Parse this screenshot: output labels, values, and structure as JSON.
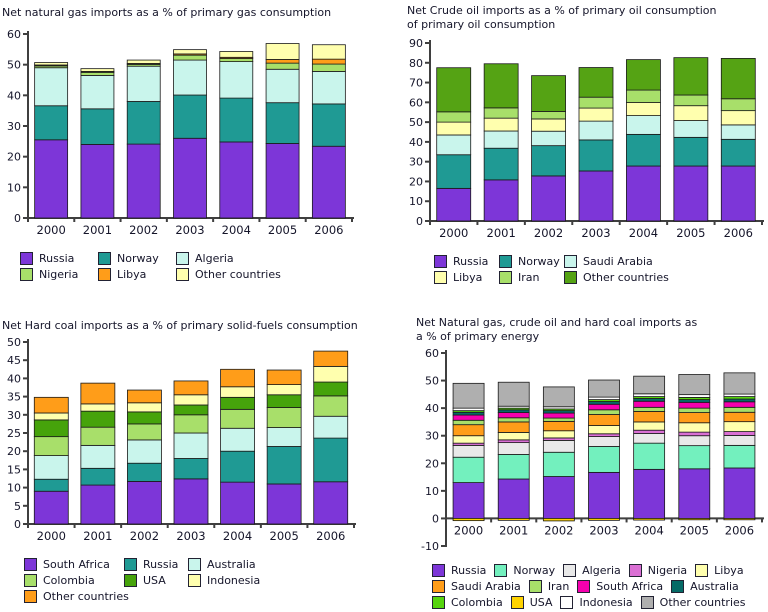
{
  "page": {
    "background": "#ffffff",
    "text_color": "#15152a",
    "axis_color": "#3f3f3f"
  },
  "chart_data": [
    {
      "id": "natural-gas",
      "type": "bar",
      "stacked": true,
      "title": "Net natural gas imports as a % of primary gas consumption",
      "categories": [
        "2000",
        "2001",
        "2002",
        "2003",
        "2004",
        "2005",
        "2006"
      ],
      "ylim": [
        0,
        60
      ],
      "ytick_step": 10,
      "grid": false,
      "legend_position": "bottom",
      "series": [
        {
          "name": "Russia",
          "color": "#7D36D8",
          "values": [
            25.5,
            24.0,
            24.1,
            26.0,
            24.8,
            24.3,
            23.4
          ]
        },
        {
          "name": "Norway",
          "color": "#1F9A94",
          "values": [
            11.1,
            11.6,
            13.9,
            14.1,
            14.3,
            13.3,
            13.8
          ]
        },
        {
          "name": "Algeria",
          "color": "#C9F5EC",
          "values": [
            12.4,
            10.9,
            11.5,
            11.4,
            11.9,
            10.9,
            10.6
          ]
        },
        {
          "name": "Nigeria",
          "color": "#A8DF6A",
          "values": [
            0.6,
            1.0,
            0.6,
            1.6,
            1.0,
            2.0,
            2.4
          ]
        },
        {
          "name": "Libya",
          "color": "#FF9D19",
          "values": [
            0.3,
            0.3,
            0.3,
            0.4,
            0.4,
            1.2,
            1.6
          ]
        },
        {
          "name": "Other countries",
          "color": "#FFFFAE",
          "values": [
            0.8,
            0.9,
            1.1,
            1.4,
            1.9,
            5.2,
            4.7
          ]
        }
      ],
      "legend_rows": [
        [
          0,
          1,
          2
        ],
        [
          3,
          4,
          5
        ]
      ]
    },
    {
      "id": "crude-oil",
      "type": "bar",
      "stacked": true,
      "title": "Net Crude oil imports as a % of primary oil consumption\nof primary oil consumption",
      "categories": [
        "2000",
        "2001",
        "2002",
        "2003",
        "2004",
        "2005",
        "2006"
      ],
      "ylim": [
        0,
        90
      ],
      "ytick_step": 10,
      "grid": false,
      "legend_position": "bottom",
      "series": [
        {
          "name": "Russia",
          "color": "#7D36D8",
          "values": [
            16.5,
            20.8,
            22.8,
            25.3,
            27.8,
            27.8,
            27.8
          ]
        },
        {
          "name": "Norway",
          "color": "#1F9A94",
          "values": [
            17.0,
            16.0,
            15.3,
            15.7,
            16.0,
            14.5,
            13.5
          ]
        },
        {
          "name": "Saudi Arabia",
          "color": "#C9F5EC",
          "values": [
            10.0,
            8.7,
            7.3,
            9.5,
            9.5,
            8.5,
            7.3
          ]
        },
        {
          "name": "Libya",
          "color": "#FFFFAE",
          "values": [
            6.5,
            6.5,
            6.2,
            6.6,
            6.6,
            7.5,
            7.2
          ]
        },
        {
          "name": "Iran",
          "color": "#A8DF6A",
          "values": [
            5.2,
            5.2,
            3.8,
            5.5,
            6.3,
            5.4,
            6.0
          ]
        },
        {
          "name": "Other countries",
          "color": "#55A314",
          "values": [
            22.3,
            22.3,
            18.1,
            15.0,
            15.4,
            18.9,
            20.4
          ]
        }
      ],
      "legend_rows": [
        [
          0,
          1,
          2
        ],
        [
          3,
          4,
          5
        ]
      ]
    },
    {
      "id": "hard-coal",
      "type": "bar",
      "stacked": true,
      "title": "Net Hard coal imports as a % of primary solid-fuels consumption",
      "categories": [
        "2000",
        "2001",
        "2002",
        "2003",
        "2004",
        "2005",
        "2006"
      ],
      "ylim": [
        0,
        50
      ],
      "ytick_step": 5,
      "grid": false,
      "legend_position": "bottom",
      "series": [
        {
          "name": "South Africa",
          "color": "#7D36D8",
          "values": [
            9.0,
            10.7,
            11.7,
            12.4,
            11.5,
            11.0,
            11.6
          ]
        },
        {
          "name": "Russia",
          "color": "#1F9A94",
          "values": [
            3.3,
            4.6,
            5.0,
            5.6,
            8.5,
            10.3,
            12.0
          ]
        },
        {
          "name": "Australia",
          "color": "#C9F5EC",
          "values": [
            6.5,
            6.3,
            6.4,
            7.0,
            6.3,
            5.2,
            6.0
          ]
        },
        {
          "name": "Colombia",
          "color": "#A8DF6A",
          "values": [
            5.2,
            5.0,
            4.4,
            5.0,
            5.2,
            5.5,
            5.6
          ]
        },
        {
          "name": "USA",
          "color": "#46A30B",
          "values": [
            4.6,
            4.4,
            3.3,
            2.7,
            3.3,
            3.5,
            3.8
          ]
        },
        {
          "name": "Indonesia",
          "color": "#FFFFAE",
          "values": [
            1.9,
            2.0,
            2.5,
            2.8,
            2.9,
            2.8,
            4.3
          ]
        },
        {
          "name": "Other countries",
          "color": "#FF9D19",
          "values": [
            4.3,
            5.7,
            3.5,
            3.8,
            4.8,
            4.0,
            4.2
          ]
        }
      ],
      "legend_rows": [
        [
          0,
          1,
          2
        ],
        [
          3,
          4,
          5
        ],
        [
          6
        ]
      ]
    },
    {
      "id": "combined-energy",
      "type": "bar",
      "stacked": true,
      "title": "Net Natural gas, crude oil and hard coal imports as\na % of primary energy",
      "categories": [
        "2000",
        "2001",
        "2002",
        "2003",
        "2004",
        "2005",
        "2006"
      ],
      "ylim": [
        -10,
        60
      ],
      "ytick_step": 10,
      "grid": false,
      "legend_position": "bottom",
      "series": [
        {
          "name": "Russia",
          "color": "#7D36D8",
          "values": [
            13.0,
            14.3,
            15.2,
            16.7,
            17.8,
            18.0,
            18.3
          ]
        },
        {
          "name": "Norway",
          "color": "#73F0BE",
          "values": [
            9.2,
            8.9,
            8.8,
            9.4,
            9.5,
            8.4,
            8.2
          ]
        },
        {
          "name": "Algeria",
          "color": "#E9E9E9",
          "values": [
            4.3,
            4.3,
            4.3,
            3.6,
            3.5,
            3.6,
            3.6
          ]
        },
        {
          "name": "Nigeria",
          "color": "#DA6FD4",
          "values": [
            0.8,
            1.0,
            0.9,
            1.0,
            1.2,
            1.3,
            1.4
          ]
        },
        {
          "name": "Libya",
          "color": "#FFFFAE",
          "values": [
            2.7,
            2.7,
            2.6,
            3.0,
            3.0,
            3.4,
            3.6
          ]
        },
        {
          "name": "Saudi Arabia",
          "color": "#FF9D19",
          "values": [
            4.0,
            3.8,
            3.4,
            4.0,
            3.8,
            3.7,
            3.4
          ]
        },
        {
          "name": "Iran",
          "color": "#A8DF6A",
          "values": [
            1.6,
            1.5,
            1.2,
            1.7,
            1.5,
            1.6,
            1.8
          ]
        },
        {
          "name": "South Africa",
          "color": "#F500AE",
          "values": [
            1.9,
            1.9,
            1.8,
            2.0,
            2.2,
            2.1,
            2.0
          ]
        },
        {
          "name": "Australia",
          "color": "#056A66",
          "values": [
            1.0,
            1.0,
            0.9,
            1.0,
            1.0,
            1.0,
            1.0
          ]
        },
        {
          "name": "Colombia",
          "color": "#56D40E",
          "values": [
            0.6,
            0.6,
            0.6,
            0.7,
            0.7,
            0.8,
            0.9
          ]
        },
        {
          "name": "USA",
          "color": "#FFD300",
          "values": [
            -0.8,
            -0.7,
            -0.9,
            -0.7,
            -0.6,
            -0.5,
            -0.5
          ]
        },
        {
          "name": "Indonesia",
          "color": "#FFFFFF",
          "values": [
            0.9,
            0.7,
            0.8,
            0.9,
            1.0,
            1.0,
            0.9
          ]
        },
        {
          "name": "Other countries",
          "color": "#AFAFAF",
          "values": [
            9.0,
            8.7,
            7.2,
            6.2,
            6.4,
            7.3,
            7.7
          ]
        }
      ],
      "legend_rows": [
        [
          0,
          1,
          2,
          3,
          4
        ],
        [
          5,
          6,
          7,
          8
        ],
        [
          9,
          10,
          11,
          12
        ]
      ]
    }
  ]
}
